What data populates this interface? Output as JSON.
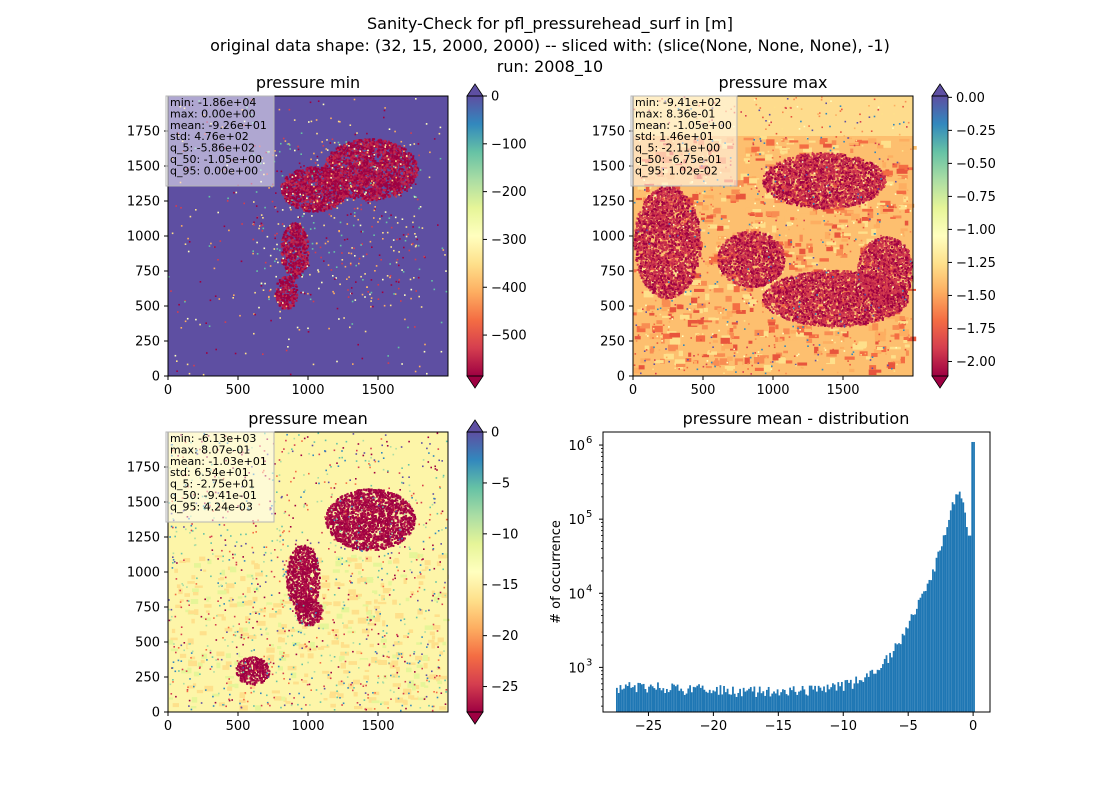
{
  "figure": {
    "suptitle": [
      "Sanity-Check for pfl_pressurehead_surf in [m]",
      "original data shape: (32, 15, 2000, 2000) -- sliced with: (slice(None, None, None), -1)",
      "run: 2008_10"
    ]
  },
  "chart_data": [
    {
      "type": "heatmap",
      "title": "pressure min",
      "colormap": "Spectral",
      "colorbar_extend": "both",
      "x_ticks": [
        "0",
        "500",
        "1000",
        "1500"
      ],
      "y_ticks": [
        "0",
        "250",
        "500",
        "750",
        "1000",
        "1250",
        "1500",
        "1750"
      ],
      "xlim": [
        0,
        2000
      ],
      "ylim": [
        0,
        2000
      ],
      "color_range": [
        -585.6,
        0
      ],
      "colorbar_ticks": [
        "0",
        "−100",
        "−200",
        "−300",
        "−400",
        "−500"
      ],
      "colorbar_tick_values": [
        0,
        -100,
        -200,
        -300,
        -400,
        -500
      ],
      "background_color": "#5e4fa2",
      "stats": [
        "min: -1.86e+04",
        "max: 0.00e+00",
        "mean: -9.26e+01",
        "std: 4.76e+02",
        "q_5: -5.86e+02",
        "q_50: -1.05e+00",
        "q_95: 0.00e+00"
      ]
    },
    {
      "type": "heatmap",
      "title": "pressure max",
      "colormap": "Spectral",
      "colorbar_extend": "both",
      "x_ticks": [
        "0",
        "500",
        "1000",
        "1500"
      ],
      "y_ticks": [
        "0",
        "250",
        "500",
        "750",
        "1000",
        "1250",
        "1500",
        "1750"
      ],
      "xlim": [
        0,
        2000
      ],
      "ylim": [
        0,
        2000
      ],
      "color_range": [
        -2.11,
        0.0102
      ],
      "colorbar_ticks": [
        "0.00",
        "−0.25",
        "−0.50",
        "−0.75",
        "−1.00",
        "−1.25",
        "−1.50",
        "−1.75",
        "−2.00"
      ],
      "colorbar_tick_values": [
        0,
        -0.25,
        -0.5,
        -0.75,
        -1.0,
        -1.25,
        -1.5,
        -1.75,
        -2.0
      ],
      "background_color": "#fdbf6f",
      "stats": [
        "min: -9.41e+02",
        "max: 8.36e-01",
        "mean: -1.05e+00",
        "std: 1.46e+01",
        "q_5: -2.11e+00",
        "q_50: -6.75e-01",
        "q_95: 1.02e-02"
      ]
    },
    {
      "type": "heatmap",
      "title": "pressure mean",
      "colormap": "Spectral",
      "colorbar_extend": "both",
      "x_ticks": [
        "0",
        "500",
        "1000",
        "1500"
      ],
      "y_ticks": [
        "0",
        "250",
        "500",
        "750",
        "1000",
        "1250",
        "1500",
        "1750"
      ],
      "xlim": [
        0,
        2000
      ],
      "ylim": [
        0,
        2000
      ],
      "color_range": [
        -27.5,
        0.00424
      ],
      "colorbar_ticks": [
        "0",
        "−5",
        "−10",
        "−15",
        "−20",
        "−25"
      ],
      "colorbar_tick_values": [
        0,
        -5,
        -10,
        -15,
        -20,
        -25
      ],
      "background_color": "#fdf5a8",
      "stats": [
        "min: -6.13e+03",
        "max: 8.07e-01",
        "mean: -1.03e+01",
        "std: 6.54e+01",
        "q_5: -2.75e+01",
        "q_50: -9.41e-01",
        "q_95: 4.24e-03"
      ]
    },
    {
      "type": "bar",
      "title": "pressure mean - distribution",
      "ylabel": "# of occurrence",
      "xlabel": "",
      "yscale": "log",
      "xlim": [
        -28.5,
        1.3
      ],
      "ylim": [
        250,
        1500000
      ],
      "x_ticks": [
        "−25",
        "−20",
        "−15",
        "−10",
        "−5",
        "0"
      ],
      "x_tick_values": [
        -25,
        -20,
        -15,
        -10,
        -5,
        0
      ],
      "y_ticks": [
        {
          "value": 1000,
          "base": "10",
          "exp": "3"
        },
        {
          "value": 10000,
          "base": "10",
          "exp": "4"
        },
        {
          "value": 100000,
          "base": "10",
          "exp": "5"
        },
        {
          "value": 1000000,
          "base": "10",
          "exp": "6"
        }
      ],
      "bar_color": "#1f77b4",
      "bins": {
        "start": -27.5,
        "width": 0.1375
      },
      "anchors": [
        [
          -27.5,
          540
        ],
        [
          -25.0,
          540
        ],
        [
          -22.5,
          520
        ],
        [
          -20.0,
          500
        ],
        [
          -17.5,
          480
        ],
        [
          -15.0,
          480
        ],
        [
          -12.5,
          500
        ],
        [
          -10.0,
          560
        ],
        [
          -8.5,
          680
        ],
        [
          -7.5,
          900
        ],
        [
          -6.5,
          1400
        ],
        [
          -5.5,
          2500
        ],
        [
          -4.5,
          5500
        ],
        [
          -3.5,
          13000
        ],
        [
          -2.5,
          40000
        ],
        [
          -1.8,
          110000
        ],
        [
          -1.4,
          190000
        ],
        [
          -1.0,
          210000
        ],
        [
          -0.7,
          160000
        ],
        [
          -0.4,
          60000
        ],
        [
          -0.1,
          70000
        ],
        [
          0.0,
          1100000
        ]
      ]
    }
  ]
}
